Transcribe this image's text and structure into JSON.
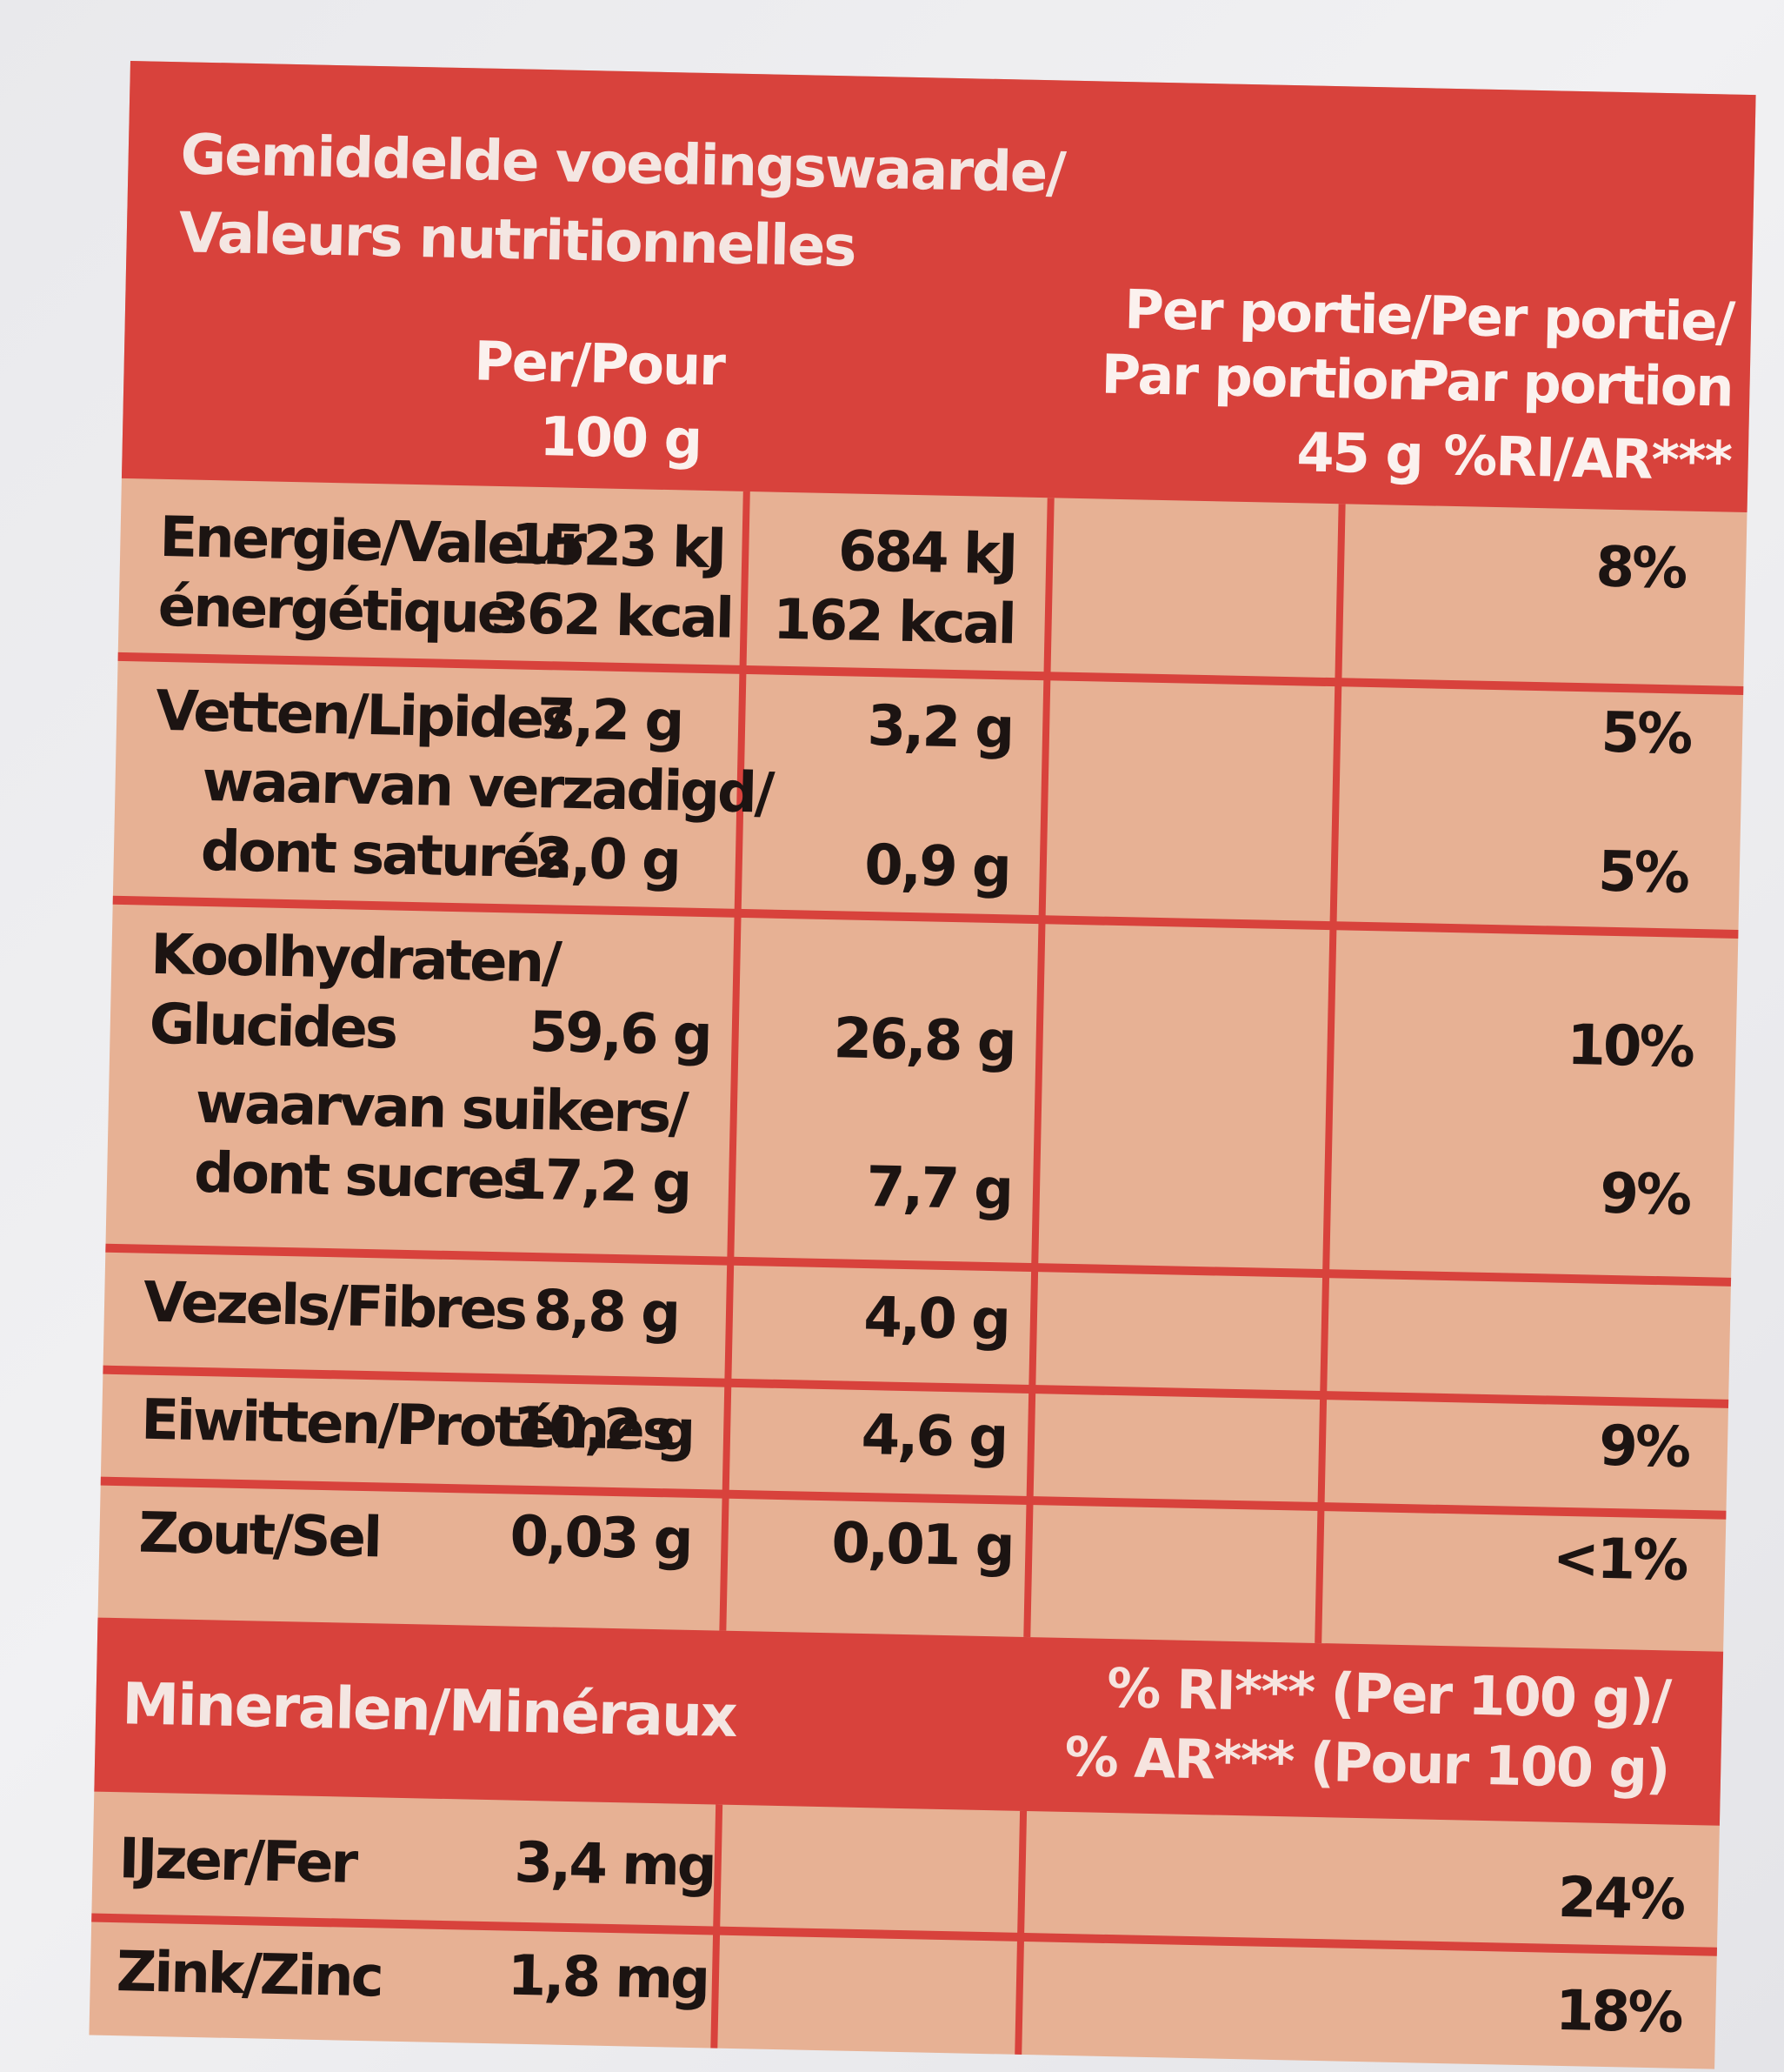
{
  "header": {
    "title_line1": "Gemiddelde voedingswaarde/",
    "title_line2": "Valeurs nutritionnelles",
    "col1_line1": "Per/Pour",
    "col1_line2": "100 g",
    "col2_line1": "Per portie/",
    "col2_line2": "Par portion",
    "col2_line3": "45 g",
    "col3_line1": "Per portie/",
    "col3_line2": "Par portion",
    "col3_line3": "%RI/AR***"
  },
  "rows": {
    "energy": {
      "label1": "Energie/Valeur",
      "label2": "énergétique",
      "per100_kj": "1523 kJ",
      "per100_kcal": "362 kcal",
      "portion_kj": "684 kJ",
      "portion_kcal": "162 kcal",
      "ri": "8%"
    },
    "fat": {
      "label": "Vetten/Lipides",
      "per100": "7,2 g",
      "portion": "3,2 g",
      "ri": "5%"
    },
    "saturated": {
      "label1": "waarvan verzadigd/",
      "label2": "dont saturés",
      "per100": "2,0 g",
      "portion": "0,9 g",
      "ri": "5%"
    },
    "carbs": {
      "label1": "Koolhydraten/",
      "label2": "Glucides",
      "per100": "59,6 g",
      "portion": "26,8 g",
      "ri": "10%"
    },
    "sugars": {
      "label1": "waarvan suikers/",
      "label2": "dont sucres",
      "per100": "17,2 g",
      "portion": "7,7 g",
      "ri": "9%"
    },
    "fibre": {
      "label": "Vezels/Fibres",
      "per100": "8,8 g",
      "portion": "4,0 g",
      "ri": ""
    },
    "protein": {
      "label": "Eiwitten/Protéines",
      "per100": "10,2 g",
      "portion": "4,6 g",
      "ri": "9%"
    },
    "salt": {
      "label": "Zout/Sel",
      "per100": "0,03 g",
      "portion": "0,01 g",
      "ri": "<1%"
    }
  },
  "minerals": {
    "title": "Mineralen/Minéraux",
    "ri_line1": "% RI*** (Per 100 g)/",
    "ri_line2": "% AR*** (Pour 100 g)",
    "iron": {
      "label": "IJzer/Fer",
      "per100": "3,4 mg",
      "ri": "24%"
    },
    "zinc": {
      "label": "Zink/Zinc",
      "per100": "1,8 mg",
      "ri": "18%"
    }
  },
  "colors": {
    "red": "#d8423c",
    "peach": "#e7b194",
    "text": "#1c1412"
  }
}
